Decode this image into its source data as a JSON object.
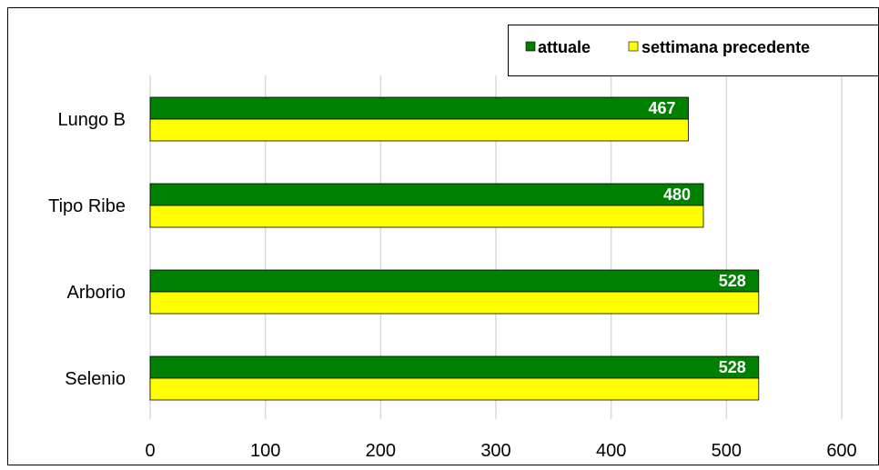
{
  "chart_data": {
    "type": "bar",
    "orientation": "horizontal",
    "categories": [
      "Lungo B",
      "Tipo Ribe",
      "Arborio",
      "Selenio"
    ],
    "series": [
      {
        "name": "attuale",
        "values": [
          467,
          480,
          528,
          528
        ],
        "color": "#008000"
      },
      {
        "name": "settimana precedente",
        "values": [
          467,
          480,
          528,
          528
        ],
        "color": "#ffff00"
      }
    ],
    "data_labels": [
      "467",
      "480",
      "528",
      "528"
    ],
    "x_ticks": [
      "0",
      "100",
      "200",
      "300",
      "400",
      "500",
      "600"
    ],
    "xlim": [
      0,
      600
    ],
    "grid": true,
    "legend_position": "top-right",
    "title": "",
    "xlabel": "",
    "ylabel": ""
  }
}
